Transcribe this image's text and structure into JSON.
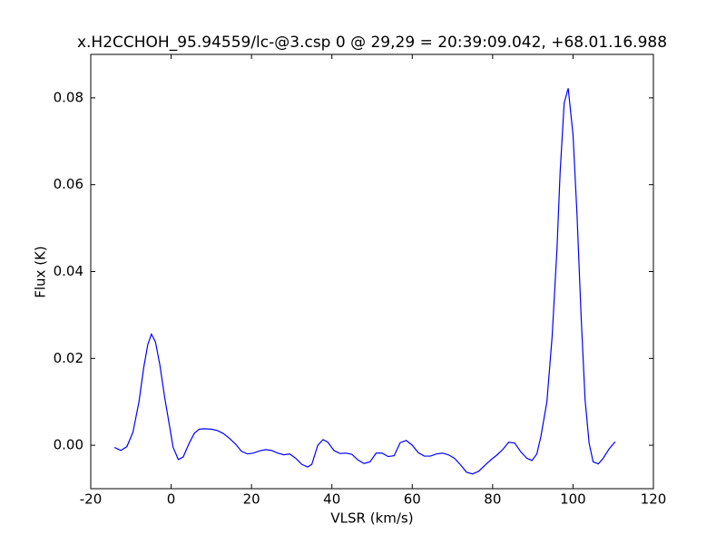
{
  "chart_data": {
    "type": "line",
    "title": "x.H2CCHOH_95.94559/lc-@3.csp 0 @ 29,29 = 20:39:09.042, +68.01.16.988",
    "xlabel": "VLSR (km/s)",
    "ylabel": "Flux (K)",
    "xlim": [
      -20,
      120
    ],
    "xticks": [
      -20,
      0,
      20,
      40,
      60,
      80,
      100,
      120
    ],
    "ylim": [
      -0.01,
      0.09
    ],
    "yticks": [
      {
        "value": 0,
        "label": "0.00"
      },
      0.02,
      0.04,
      0.06,
      0.08
    ],
    "grid": false,
    "x": [
      -14.1,
      -12.5,
      -11.0,
      -9.5,
      -8.0,
      -6.8,
      -5.8,
      -4.9,
      -3.9,
      -2.8,
      -1.6,
      -0.5,
      0.5,
      1.8,
      3.0,
      4.5,
      5.8,
      7.0,
      8.2,
      10.0,
      11.5,
      13.0,
      14.5,
      16.0,
      17.5,
      19.0,
      20.5,
      22.0,
      23.5,
      25.0,
      26.5,
      28.0,
      29.5,
      31.0,
      32.5,
      34.0,
      35.0,
      36.5,
      37.8,
      39.0,
      40.5,
      42.0,
      43.5,
      45.0,
      46.5,
      48.0,
      49.5,
      51.0,
      52.5,
      54.0,
      55.5,
      57.0,
      58.5,
      60.0,
      61.5,
      63.0,
      64.5,
      66.0,
      67.5,
      69.0,
      70.5,
      72.0,
      73.5,
      75.0,
      76.5,
      78.0,
      79.5,
      81.0,
      82.5,
      84.0,
      85.5,
      87.0,
      88.5,
      89.8,
      91.0,
      92.0,
      93.5,
      94.8,
      96.0,
      96.8,
      97.8,
      98.8,
      100.0,
      101.0,
      102.0,
      103.0,
      104.0,
      105.0,
      106.3,
      107.5,
      109.0,
      110.5
    ],
    "series": [
      {
        "color": "#0000ff",
        "values": [
          -0.0005,
          -0.0012,
          -0.0003,
          0.003,
          0.01,
          0.018,
          0.0232,
          0.0256,
          0.0238,
          0.0185,
          0.011,
          0.005,
          -0.0005,
          -0.0033,
          -0.0027,
          0.0005,
          0.0028,
          0.0037,
          0.0038,
          0.0037,
          0.0034,
          0.0027,
          0.0016,
          0.0003,
          -0.0014,
          -0.002,
          -0.0018,
          -0.0013,
          -0.001,
          -0.0012,
          -0.0018,
          -0.0022,
          -0.002,
          -0.003,
          -0.0044,
          -0.005,
          -0.0044,
          0.0,
          0.0013,
          0.0007,
          -0.0012,
          -0.0019,
          -0.0018,
          -0.0021,
          -0.0034,
          -0.0042,
          -0.0038,
          -0.0018,
          -0.0018,
          -0.0026,
          -0.0024,
          0.0006,
          0.0011,
          0.0,
          -0.0017,
          -0.0025,
          -0.0025,
          -0.002,
          -0.0018,
          -0.0022,
          -0.003,
          -0.0045,
          -0.0062,
          -0.0066,
          -0.006,
          -0.0047,
          -0.0034,
          -0.0023,
          -0.001,
          0.0007,
          0.0005,
          -0.0015,
          -0.003,
          -0.0035,
          -0.002,
          0.002,
          0.01,
          0.025,
          0.045,
          0.063,
          0.0788,
          0.0822,
          0.0715,
          0.053,
          0.03,
          0.0105,
          0.0005,
          -0.0038,
          -0.0043,
          -0.003,
          -0.0008,
          0.0008
        ]
      }
    ]
  }
}
